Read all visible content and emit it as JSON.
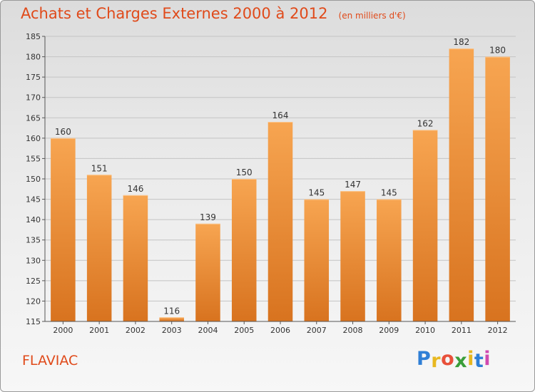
{
  "header": {
    "title": "Achats et Charges Externes 2000 à 2012",
    "unit": "(en milliers d'€)"
  },
  "footer": {
    "commune": "FLAVIAC",
    "logo": {
      "text": "Proxiti",
      "colors": [
        "#2f7fd6",
        "#e8b820",
        "#e8503a",
        "#3a9e3a",
        "#e8b820",
        "#2f7fd6",
        "#d04ab0"
      ]
    }
  },
  "colors": {
    "bar_top": "#f7a551",
    "bar_bottom": "#d8731f",
    "axis": "#555555",
    "grid": "#c4c4c4",
    "text": "#333333"
  },
  "chart_data": {
    "type": "bar",
    "title": "Achats et Charges Externes 2000 à 2012",
    "subtitle": "(en milliers d'€)",
    "categories": [
      "2000",
      "2001",
      "2002",
      "2003",
      "2004",
      "2005",
      "2006",
      "2007",
      "2008",
      "2009",
      "2010",
      "2011",
      "2012"
    ],
    "values": [
      160,
      151,
      146,
      116,
      139,
      150,
      164,
      145,
      147,
      145,
      162,
      182,
      180
    ],
    "ylim": [
      115,
      185
    ],
    "yticks": [
      115,
      120,
      125,
      130,
      135,
      140,
      145,
      150,
      155,
      160,
      165,
      170,
      175,
      180,
      185
    ],
    "grid": true,
    "data_labels": true,
    "xlabel": "",
    "ylabel": ""
  }
}
